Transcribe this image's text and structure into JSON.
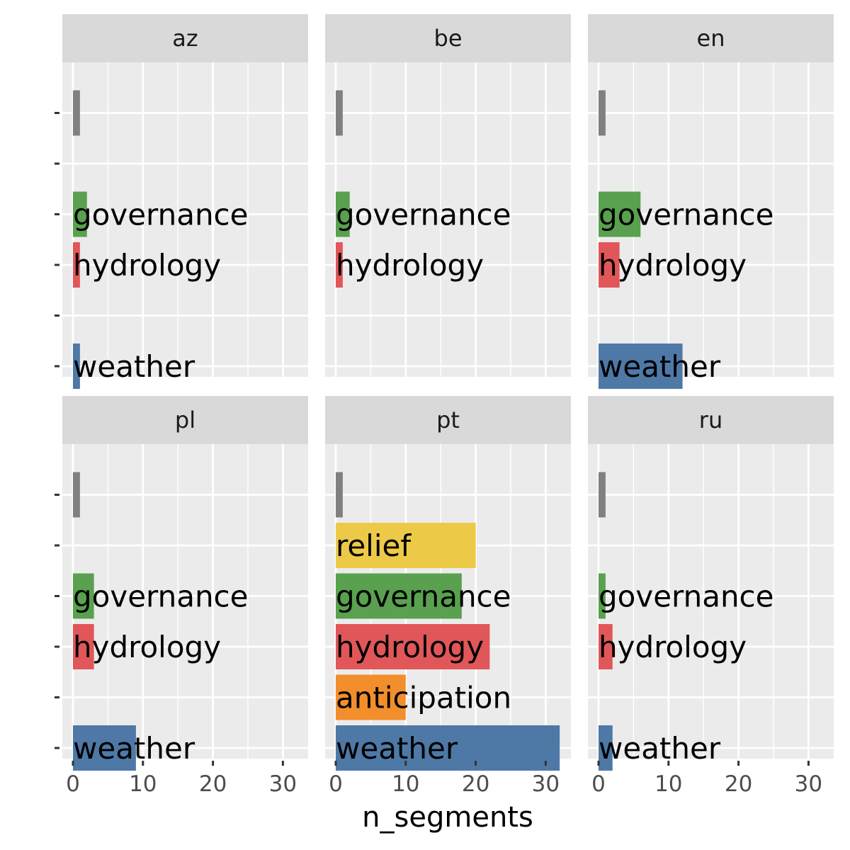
{
  "chart_data": {
    "type": "bar",
    "orientation": "horizontal",
    "xlabel": "n_segments",
    "ylabel": "",
    "xlim": [
      0,
      33
    ],
    "x_ticks": [
      0,
      10,
      20,
      30
    ],
    "grid": true,
    "facet_layout": "2 rows x 3 columns",
    "categories": [
      "",
      "relief",
      "governance",
      "hydrology",
      "anticipation",
      "weather"
    ],
    "category_colors": {
      "": "#808080",
      "relief": "#EDC948",
      "governance": "#59A14F",
      "hydrology": "#E15759",
      "anticipation": "#F28E2B",
      "weather": "#4E79A7"
    },
    "panels": [
      {
        "facet": "az",
        "bars": [
          {
            "category": "",
            "value": 1
          },
          {
            "category": "governance",
            "value": 2
          },
          {
            "category": "hydrology",
            "value": 1
          },
          {
            "category": "weather",
            "value": 1
          }
        ]
      },
      {
        "facet": "be",
        "bars": [
          {
            "category": "",
            "value": 1
          },
          {
            "category": "governance",
            "value": 2
          },
          {
            "category": "hydrology",
            "value": 1
          }
        ]
      },
      {
        "facet": "en",
        "bars": [
          {
            "category": "",
            "value": 1
          },
          {
            "category": "governance",
            "value": 6
          },
          {
            "category": "hydrology",
            "value": 3
          },
          {
            "category": "weather",
            "value": 12
          }
        ]
      },
      {
        "facet": "pl",
        "bars": [
          {
            "category": "",
            "value": 1
          },
          {
            "category": "governance",
            "value": 3
          },
          {
            "category": "hydrology",
            "value": 3
          },
          {
            "category": "weather",
            "value": 9
          }
        ]
      },
      {
        "facet": "pt",
        "bars": [
          {
            "category": "",
            "value": 1
          },
          {
            "category": "relief",
            "value": 20
          },
          {
            "category": "governance",
            "value": 18
          },
          {
            "category": "hydrology",
            "value": 22
          },
          {
            "category": "anticipation",
            "value": 10
          },
          {
            "category": "weather",
            "value": 32
          }
        ]
      },
      {
        "facet": "ru",
        "bars": [
          {
            "category": "",
            "value": 1
          },
          {
            "category": "governance",
            "value": 1
          },
          {
            "category": "hydrology",
            "value": 2
          },
          {
            "category": "weather",
            "value": 2
          }
        ]
      }
    ]
  },
  "colors": {
    "panel_background": "#EBEBEB",
    "strip_background": "#D9D9D9",
    "grid": "#FFFFFF",
    "tick": "#333333"
  }
}
